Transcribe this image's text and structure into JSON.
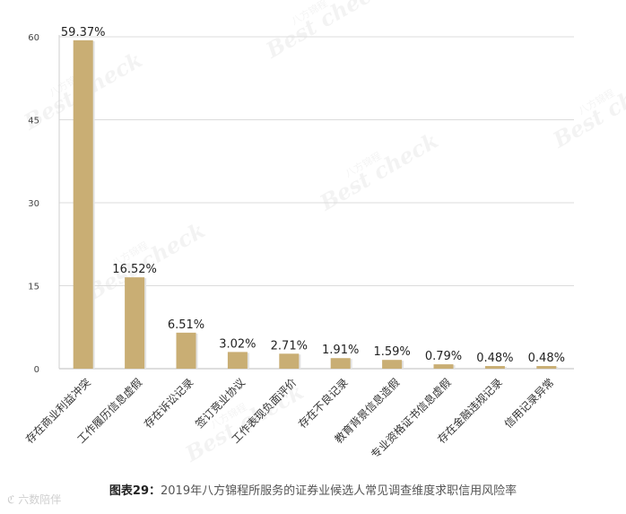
{
  "chart_data": {
    "type": "bar",
    "categories": [
      "存在商业利益冲突",
      "工作履历信息虚假",
      "存在诉讼记录",
      "签订竞业协议",
      "工作表现负面评价",
      "存在不良记录",
      "教育背景信息造假",
      "专业资格证书信息虚假",
      "存在金融违规记录",
      "信用记录异常"
    ],
    "values": [
      59.37,
      16.52,
      6.51,
      3.02,
      2.71,
      1.91,
      1.59,
      0.79,
      0.48,
      0.48
    ],
    "data_labels": [
      "59.37%",
      "16.52%",
      "6.51%",
      "3.02%",
      "2.71%",
      "1.91%",
      "1.59%",
      "0.79%",
      "0.48%",
      "0.48%"
    ],
    "ylim": [
      0,
      60
    ],
    "yticks": [
      0,
      15,
      30,
      45,
      60
    ],
    "grid": true,
    "bar_color": "#c9ae74",
    "title": "",
    "xlabel": "",
    "ylabel": ""
  },
  "caption": {
    "label": "图表29：",
    "text": "2019年八方锦程所服务的证券业候选人常见调查维度求职信用风险率"
  },
  "watermark": {
    "brand_cn": "八方锦程",
    "brand_en": "Best check",
    "logo_text": "六数陪伴"
  }
}
